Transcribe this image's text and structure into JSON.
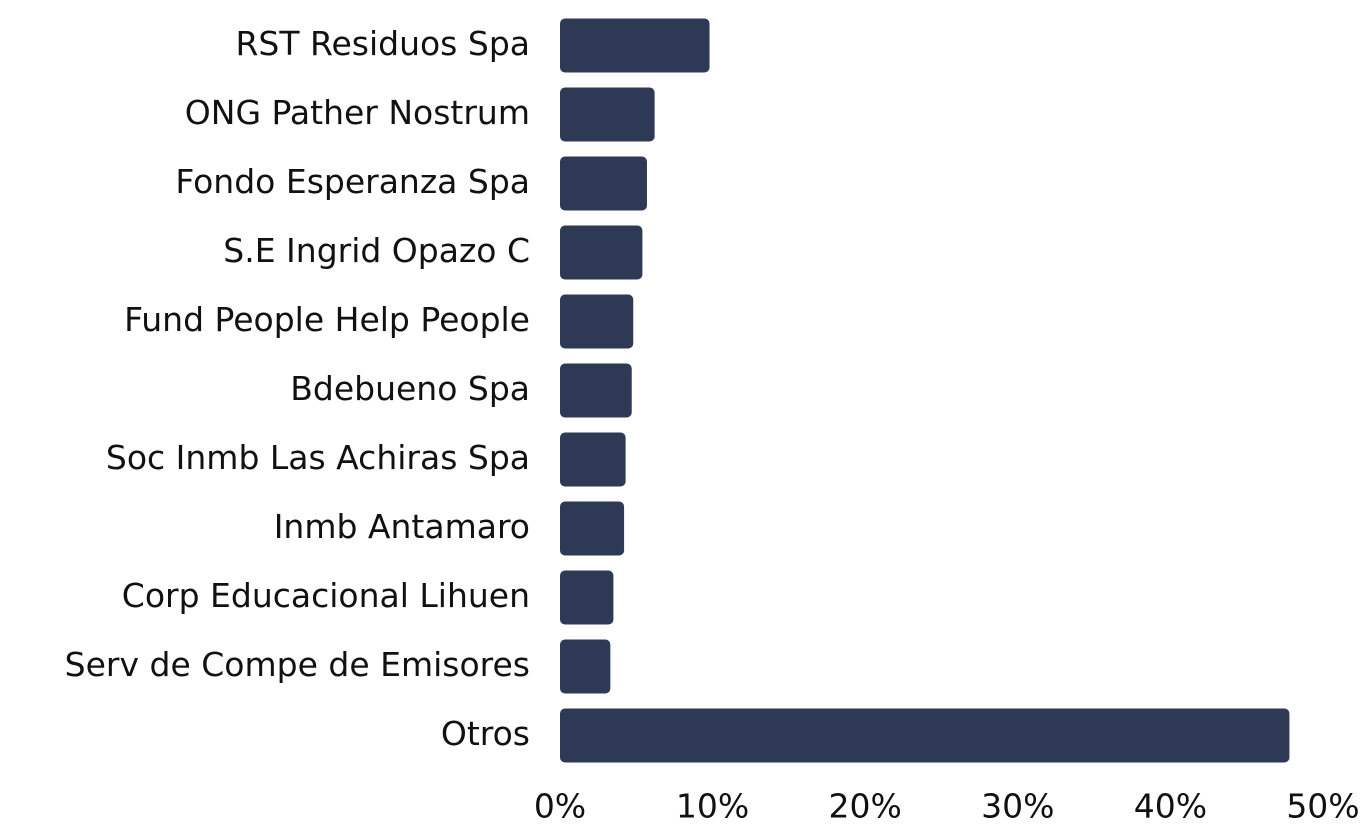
{
  "chart_data": {
    "type": "bar",
    "orientation": "horizontal",
    "categories": [
      "RST Residuos Spa",
      "ONG Pather Nostrum",
      "Fondo Esperanza Spa",
      "S.E Ingrid Opazo C",
      "Fund People Help People",
      "Bdebueno Spa",
      "Soc Inmb Las Achiras Spa",
      "Inmb Antamaro",
      "Corp Educacional Lihuen",
      "Serv de Compe de Emisores",
      "Otros"
    ],
    "values": [
      9.8,
      6.2,
      5.7,
      5.4,
      4.8,
      4.7,
      4.3,
      4.2,
      3.5,
      3.3,
      47.8
    ],
    "color": "#2e3a55",
    "xlim": [
      0,
      50
    ],
    "xticks": [
      {
        "value": 0,
        "label": "0%"
      },
      {
        "value": 10,
        "label": "10%"
      },
      {
        "value": 20,
        "label": "20%"
      },
      {
        "value": 30,
        "label": "30%"
      },
      {
        "value": 40,
        "label": "40%"
      },
      {
        "value": 50,
        "label": "50%"
      }
    ],
    "grid": false
  }
}
